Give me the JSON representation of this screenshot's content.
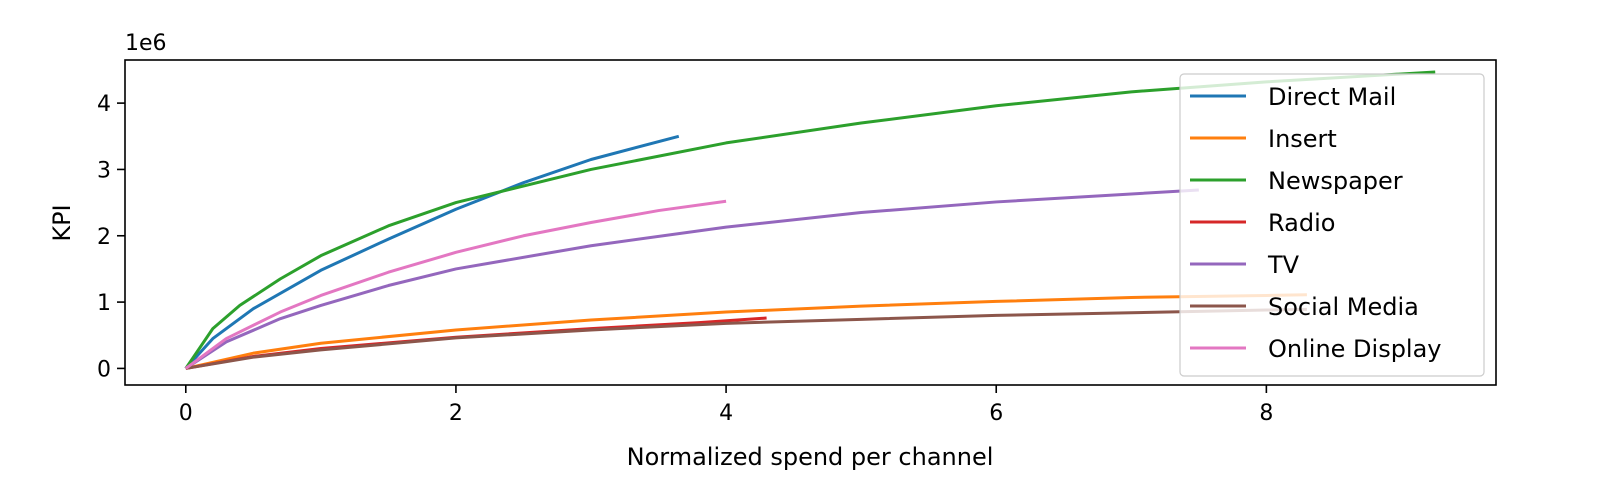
{
  "chart_data": {
    "type": "line",
    "xlabel": "Normalized spend per channel",
    "ylabel": "KPI",
    "y_offset_text": "1e6",
    "xlim": [
      -0.45,
      9.7
    ],
    "ylim": [
      -250000,
      4650000
    ],
    "x_ticks": [
      0,
      2,
      4,
      6,
      8
    ],
    "y_ticks": [
      0,
      1,
      2,
      3,
      4
    ],
    "y_tick_unit": 1000000,
    "grid": false,
    "legend_position": "upper right",
    "series": [
      {
        "name": "Direct Mail",
        "color": "#1f77b4",
        "points": [
          [
            0,
            0
          ],
          [
            0.2,
            450000
          ],
          [
            0.5,
            900000
          ],
          [
            1.0,
            1480000
          ],
          [
            1.5,
            1950000
          ],
          [
            2.0,
            2400000
          ],
          [
            2.5,
            2800000
          ],
          [
            3.0,
            3150000
          ],
          [
            3.65,
            3500000
          ]
        ]
      },
      {
        "name": "Insert",
        "color": "#ff7f0e",
        "points": [
          [
            0,
            0
          ],
          [
            0.5,
            230000
          ],
          [
            1,
            380000
          ],
          [
            2,
            580000
          ],
          [
            3,
            730000
          ],
          [
            4,
            850000
          ],
          [
            5,
            940000
          ],
          [
            6,
            1010000
          ],
          [
            7,
            1070000
          ],
          [
            8,
            1100000
          ],
          [
            8.3,
            1110000
          ]
        ]
      },
      {
        "name": "Newspaper",
        "color": "#2ca02c",
        "points": [
          [
            0,
            0
          ],
          [
            0.2,
            600000
          ],
          [
            0.4,
            950000
          ],
          [
            0.7,
            1350000
          ],
          [
            1.0,
            1700000
          ],
          [
            1.5,
            2150000
          ],
          [
            2.0,
            2500000
          ],
          [
            3.0,
            3000000
          ],
          [
            4.0,
            3400000
          ],
          [
            5.0,
            3700000
          ],
          [
            6.0,
            3960000
          ],
          [
            7.0,
            4170000
          ],
          [
            8.0,
            4320000
          ],
          [
            9.25,
            4470000
          ]
        ]
      },
      {
        "name": "Radio",
        "color": "#d62728",
        "points": [
          [
            0,
            0
          ],
          [
            0.5,
            180000
          ],
          [
            1,
            300000
          ],
          [
            2,
            470000
          ],
          [
            3,
            600000
          ],
          [
            3.8,
            690000
          ],
          [
            4.3,
            760000
          ]
        ]
      },
      {
        "name": "TV",
        "color": "#9467bd",
        "points": [
          [
            0,
            0
          ],
          [
            0.3,
            400000
          ],
          [
            0.7,
            750000
          ],
          [
            1.0,
            950000
          ],
          [
            1.5,
            1250000
          ],
          [
            2.0,
            1500000
          ],
          [
            3.0,
            1850000
          ],
          [
            4.0,
            2130000
          ],
          [
            5.0,
            2350000
          ],
          [
            6.0,
            2510000
          ],
          [
            7.0,
            2630000
          ],
          [
            7.5,
            2690000
          ]
        ]
      },
      {
        "name": "Social Media",
        "color": "#8c564b",
        "points": [
          [
            0,
            0
          ],
          [
            0.5,
            170000
          ],
          [
            1,
            280000
          ],
          [
            2,
            460000
          ],
          [
            3,
            580000
          ],
          [
            4,
            680000
          ],
          [
            5,
            740000
          ],
          [
            6,
            800000
          ],
          [
            7,
            840000
          ],
          [
            8,
            880000
          ],
          [
            8.3,
            890000
          ]
        ]
      },
      {
        "name": "Online Display",
        "color": "#e377c2",
        "points": [
          [
            0,
            0
          ],
          [
            0.3,
            450000
          ],
          [
            0.7,
            850000
          ],
          [
            1.0,
            1100000
          ],
          [
            1.5,
            1450000
          ],
          [
            2.0,
            1750000
          ],
          [
            2.5,
            2000000
          ],
          [
            3.0,
            2200000
          ],
          [
            3.5,
            2380000
          ],
          [
            4.0,
            2520000
          ]
        ]
      }
    ]
  }
}
